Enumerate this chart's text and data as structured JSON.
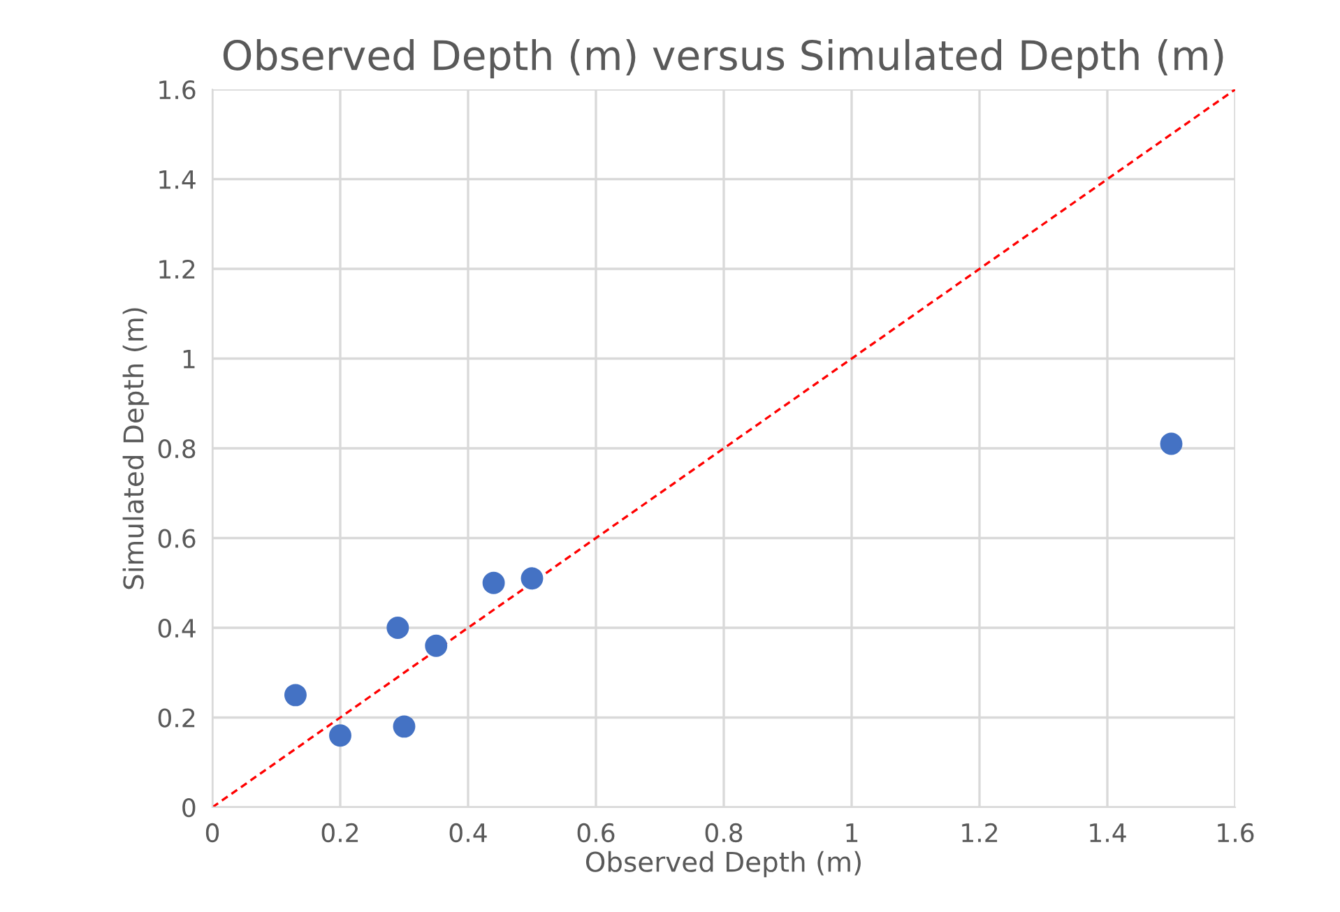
{
  "chart_data": {
    "type": "scatter",
    "title": "Observed Depth (m) versus Simulated Depth (m)",
    "xlabel": "Observed Depth (m)",
    "ylabel": "Simulated Depth (m)",
    "series": [
      {
        "color": "#4472c4",
        "marker": "circle",
        "x": [
          0.13,
          0.2,
          0.29,
          0.3,
          0.35,
          0.44,
          0.5,
          1.5
        ],
        "values": [
          0.25,
          0.16,
          0.4,
          0.18,
          0.36,
          0.5,
          0.51,
          0.81
        ]
      },
      {
        "type": "line",
        "color": "#ff0000",
        "line_style": "dashed",
        "marker": "none",
        "x": [
          0,
          1.6
        ],
        "values": [
          0,
          1.6
        ]
      }
    ],
    "xlim": [
      0,
      1.6
    ],
    "ylim": [
      0,
      1.6
    ],
    "xticks": [
      0,
      0.2,
      0.4,
      0.6,
      0.8,
      1,
      1.2,
      1.4,
      1.6
    ],
    "yticks": [
      0,
      0.2,
      0.4,
      0.6,
      0.8,
      1,
      1.2,
      1.4,
      1.6
    ],
    "grid": true
  }
}
